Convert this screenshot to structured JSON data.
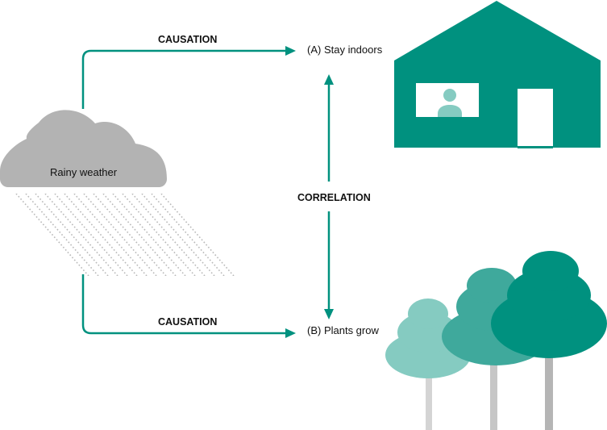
{
  "labels": {
    "cloud": "Rainy weather",
    "top_arrow": "CAUSATION",
    "bottom_arrow": "CAUSATION",
    "middle_arrow": "CORRELATION",
    "outcome_a": "(A) Stay indoors",
    "outcome_b": "(B) Plants grow"
  },
  "icons": {
    "cloud": "rain-cloud-icon",
    "house": "house-icon",
    "person": "person-icon",
    "trees": "trees-icon"
  },
  "colors": {
    "teal": "#00917f",
    "teal_mid": "#3fa99c",
    "teal_light": "#85cbc1",
    "cloud": "#b3b3b3",
    "rain": "#b8b8b8",
    "trunk_light": "#d4d4d4",
    "trunk_mid": "#c6c6c6",
    "trunk_dark": "#b5b5b5",
    "text": "#111111"
  }
}
